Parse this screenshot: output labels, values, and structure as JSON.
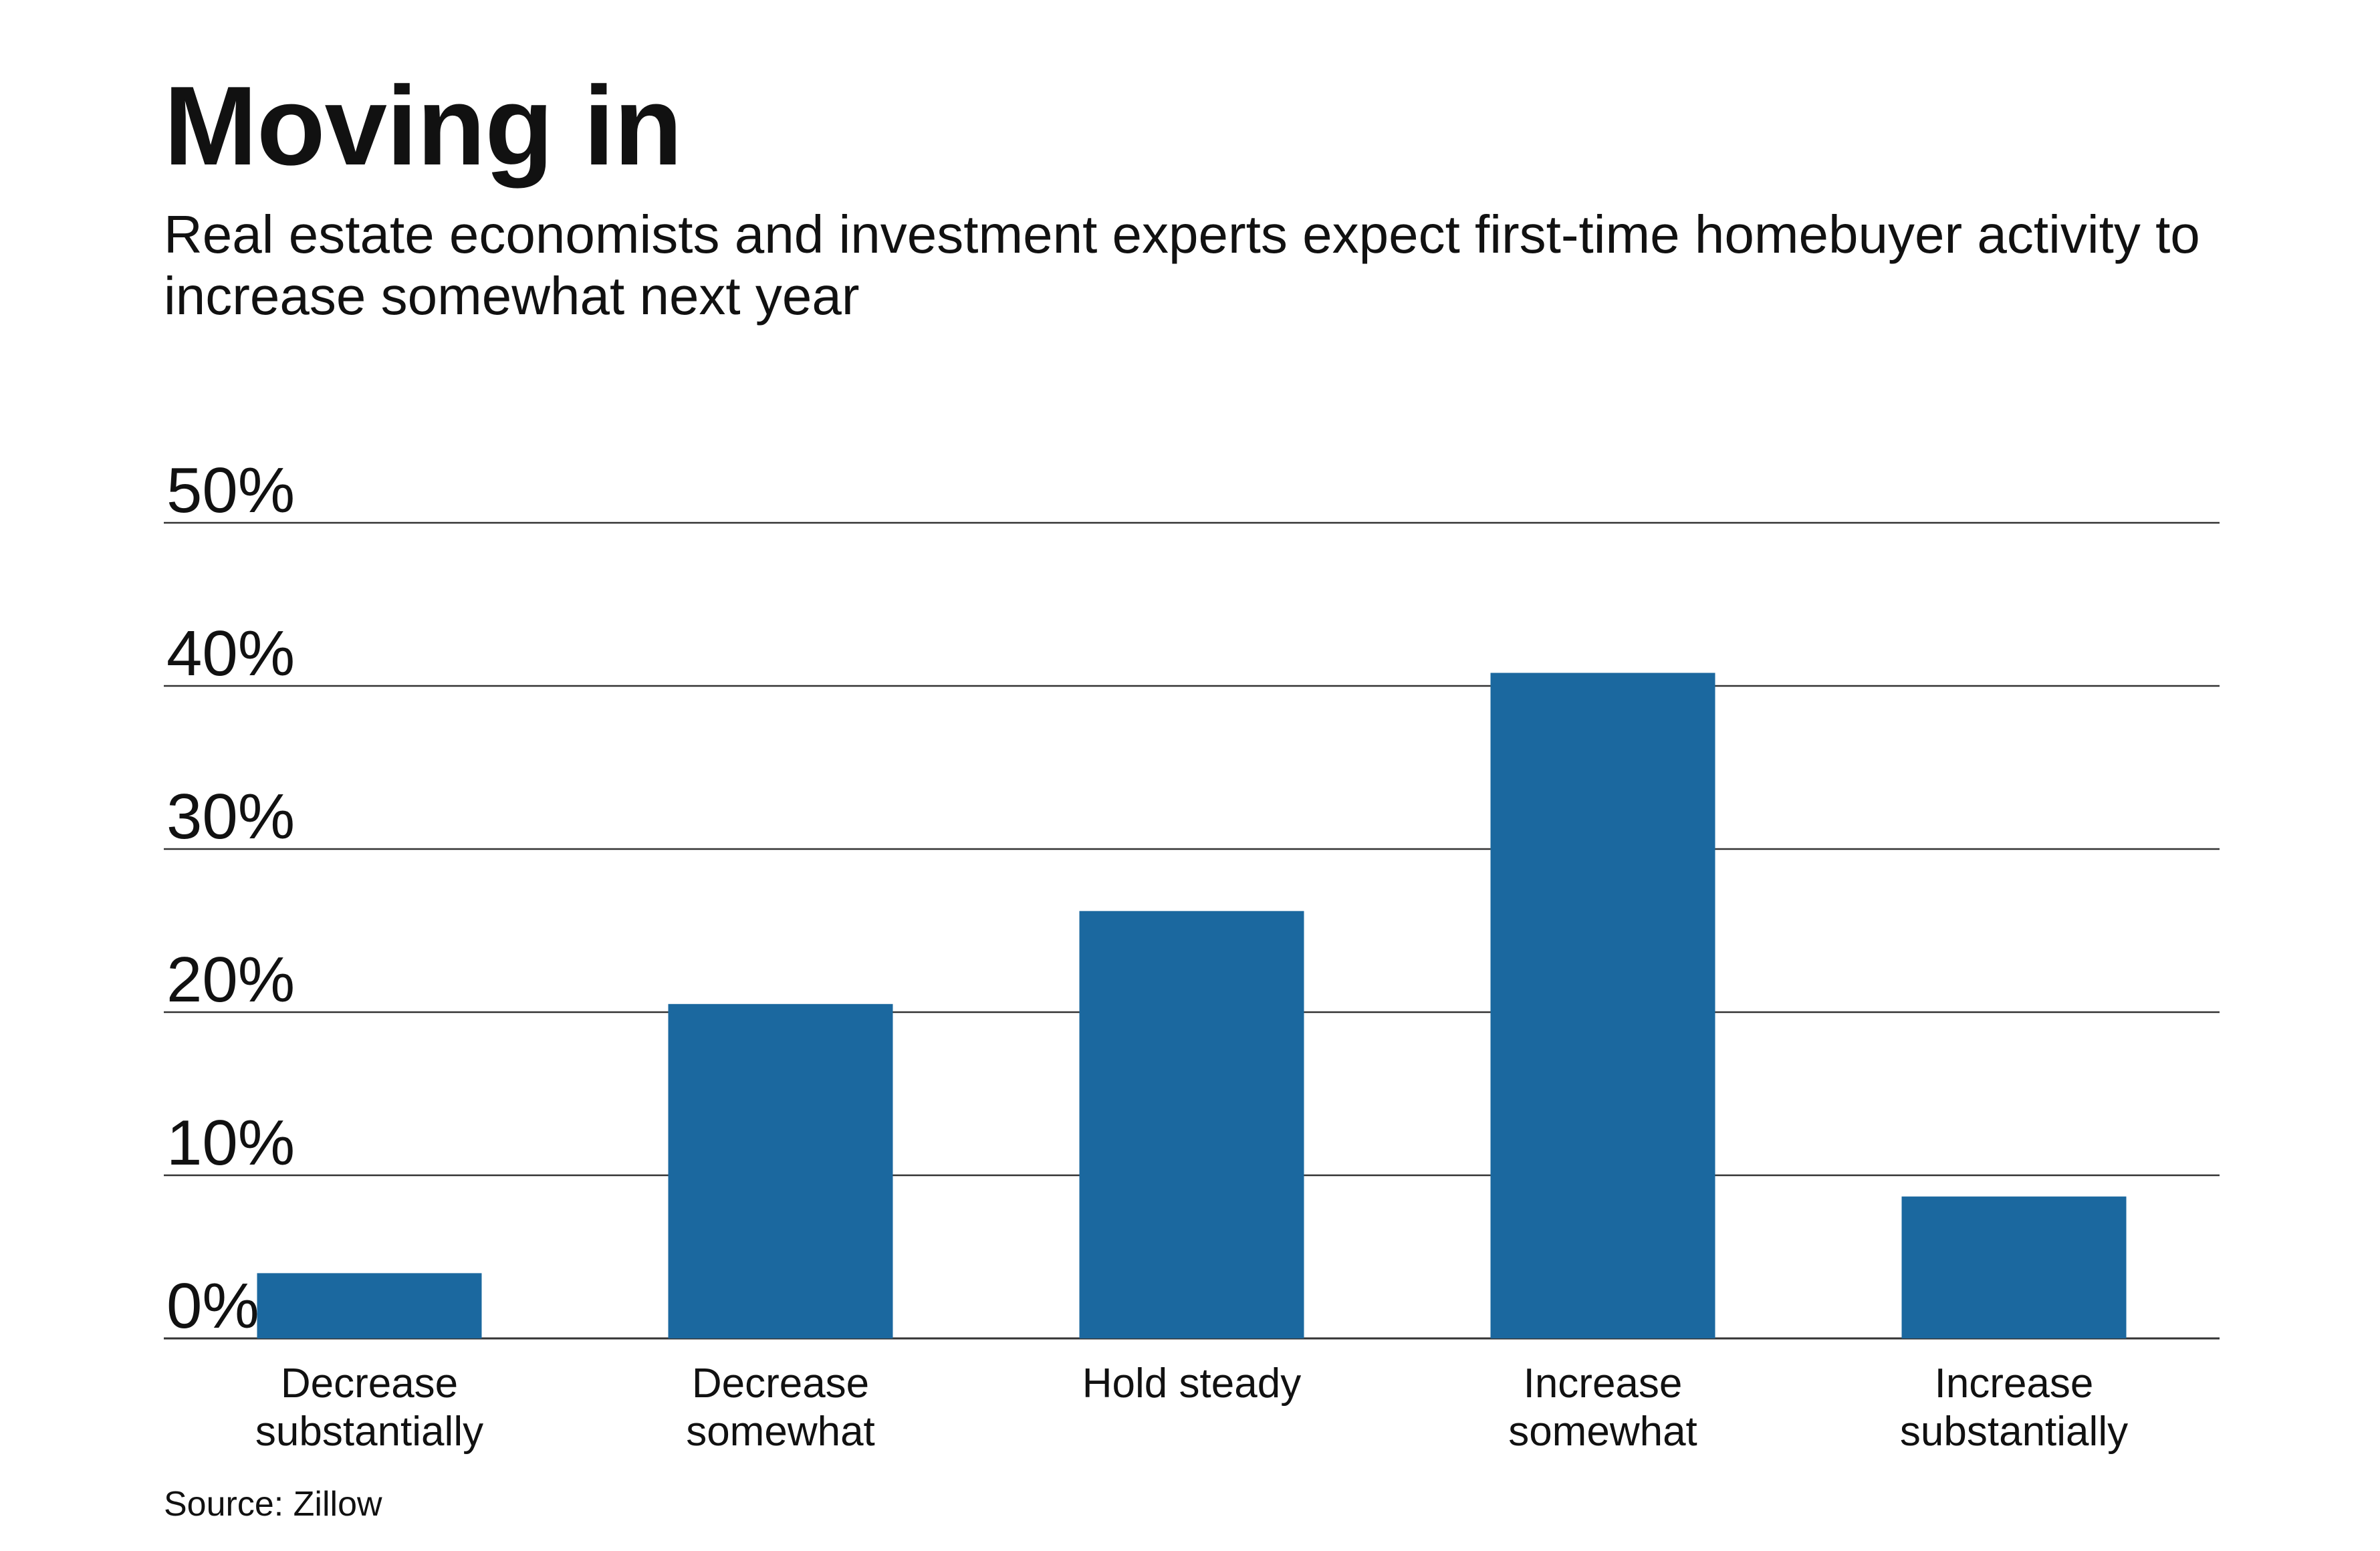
{
  "title": "Moving in",
  "subtitle": "Real estate economists and investment experts expect first-time homebuyer activity to increase somewhat next year",
  "source": "Source: Zillow",
  "colors": {
    "bar": "#1b689f",
    "gridline": "#333333",
    "text": "#111111"
  },
  "chart_data": {
    "type": "bar",
    "categories": [
      [
        "Decrease",
        "substantially"
      ],
      [
        "Decrease",
        "somewhat"
      ],
      [
        "Hold steady"
      ],
      [
        "Increase",
        "somewhat"
      ],
      [
        "Increase",
        "substantially"
      ]
    ],
    "values": [
      4,
      20.5,
      26.2,
      40.8,
      8.7
    ],
    "title": "",
    "xlabel": "",
    "ylabel": "",
    "ylim": [
      0,
      50
    ],
    "yticks": [
      0,
      10,
      20,
      30,
      40,
      50
    ],
    "ytick_labels": [
      "0%",
      "10%",
      "20%",
      "30%",
      "40%",
      "50%"
    ],
    "grid": true,
    "legend": "none"
  }
}
